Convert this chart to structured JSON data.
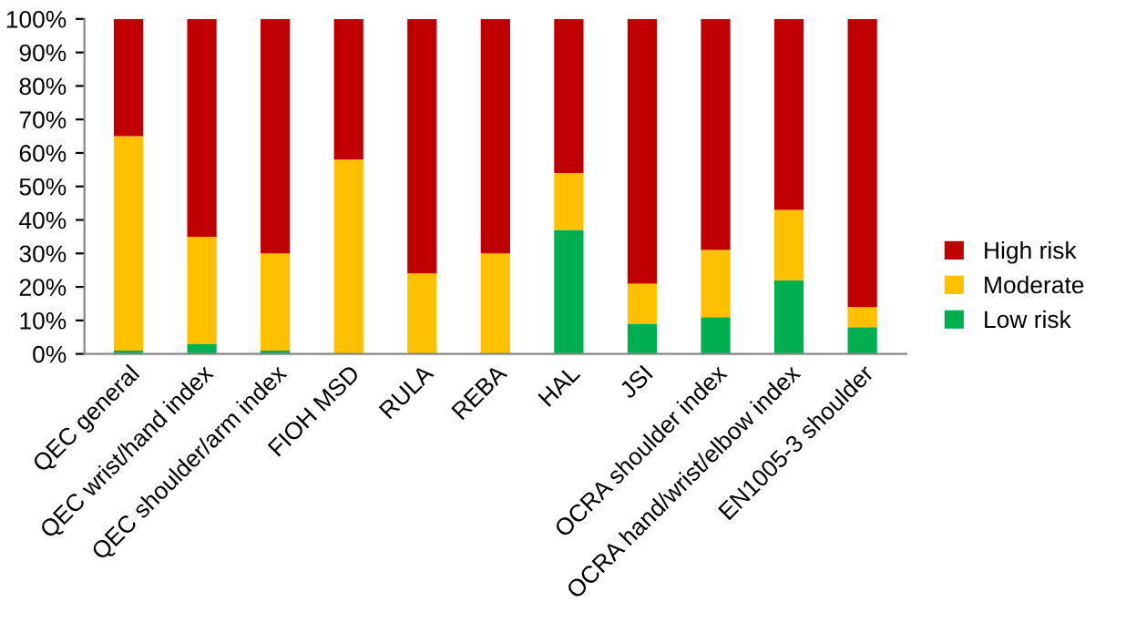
{
  "chart_data": {
    "type": "bar",
    "stacked": true,
    "categories": [
      "QEC general",
      "QEC wrist/hand index",
      "QEC shoulder/arm index",
      "FIOH MSD",
      "RULA",
      "REBA",
      "HAL",
      "JSI",
      "OCRA shoulder index",
      "OCRA hand/wrist/elbow index",
      "EN1005-3 shoulder"
    ],
    "series": [
      {
        "name": "Low risk",
        "color": "#00b050",
        "values": [
          1,
          3,
          1,
          0,
          0,
          0,
          37,
          9,
          11,
          22,
          8
        ]
      },
      {
        "name": "Moderate",
        "color": "#ffc000",
        "values": [
          64,
          32,
          29,
          58,
          24,
          30,
          17,
          12,
          20,
          21,
          6
        ]
      },
      {
        "name": "High risk",
        "color": "#c00000",
        "values": [
          35,
          65,
          70,
          42,
          76,
          70,
          46,
          79,
          69,
          57,
          86
        ]
      }
    ],
    "ylim": [
      0,
      100
    ],
    "yticks": [
      {
        "value": 0,
        "label": "0%"
      },
      {
        "value": 10,
        "label": "10%"
      },
      {
        "value": 20,
        "label": "20%"
      },
      {
        "value": 30,
        "label": "30%"
      },
      {
        "value": 40,
        "label": "40%"
      },
      {
        "value": 50,
        "label": "50%"
      },
      {
        "value": 60,
        "label": "60%"
      },
      {
        "value": 70,
        "label": "70%"
      },
      {
        "value": 80,
        "label": "80%"
      },
      {
        "value": 90,
        "label": "90%"
      },
      {
        "value": 100,
        "label": "100%"
      }
    ],
    "grid": false,
    "legend": "right"
  }
}
